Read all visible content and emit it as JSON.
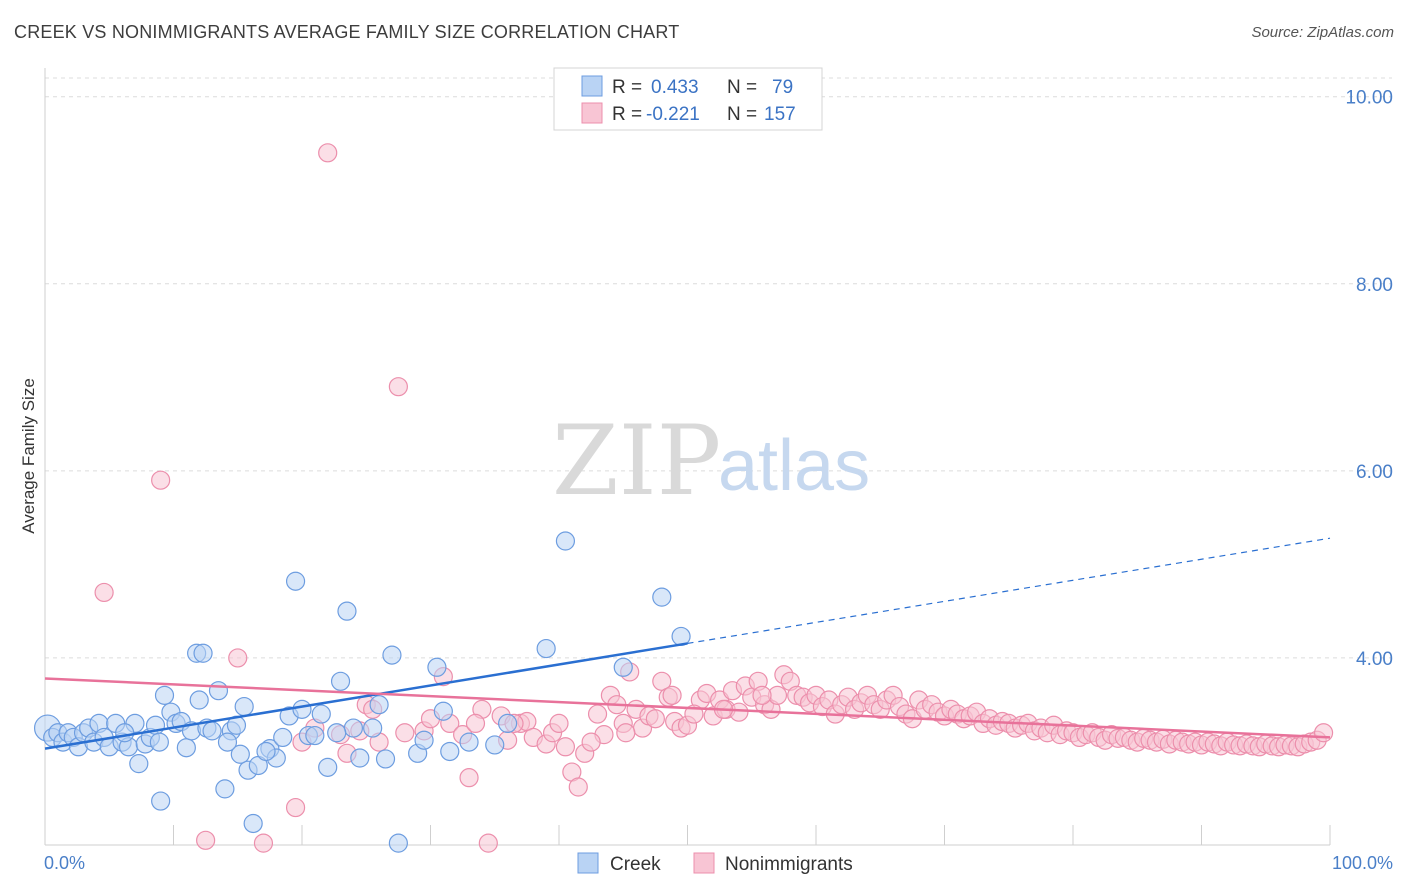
{
  "title": "CREEK VS NONIMMIGRANTS AVERAGE FAMILY SIZE CORRELATION CHART",
  "source": "Source: ZipAtlas.com",
  "watermark": {
    "zip": "ZIP",
    "atlas": "atlas"
  },
  "colors": {
    "creek_fill": "#b9d3f4",
    "creek_stroke": "#6d9de0",
    "creek_line": "#2a6fd1",
    "non_fill": "#f8c5d4",
    "non_stroke": "#ec8fac",
    "non_line": "#e8729a",
    "axis_text": "#4a7fc8",
    "grid": "#dcdcdc"
  },
  "legend": {
    "creek": {
      "r_label": "R =",
      "r_value": "0.433",
      "n_label": "N =",
      "n_value": "79"
    },
    "non": {
      "r_label": "R =",
      "r_value": "-0.221",
      "n_label": "N =",
      "n_value": "157"
    }
  },
  "chart_data": {
    "type": "scatter",
    "xlabel": "",
    "ylabel": "Average Family Size",
    "xlim": [
      0,
      100
    ],
    "ylim": [
      2.0,
      10.2
    ],
    "x_tick_labels": [
      "0.0%",
      "100.0%"
    ],
    "y_ticks": [
      4.0,
      6.0,
      8.0,
      10.0
    ],
    "y_tick_labels": [
      "4.00",
      "6.00",
      "8.00",
      "10.00"
    ],
    "grid": true,
    "legend_position": "top-center",
    "series": [
      {
        "name": "Creek",
        "trend": {
          "x0": 0,
          "y0": 3.03,
          "x1": 100,
          "y1": 5.28,
          "solid_until": 50
        },
        "points": [
          [
            0.2,
            3.25
          ],
          [
            0.6,
            3.15
          ],
          [
            1.0,
            3.2
          ],
          [
            1.4,
            3.1
          ],
          [
            1.8,
            3.2
          ],
          [
            2.2,
            3.15
          ],
          [
            2.6,
            3.05
          ],
          [
            3.0,
            3.2
          ],
          [
            3.4,
            3.25
          ],
          [
            3.8,
            3.1
          ],
          [
            4.2,
            3.3
          ],
          [
            4.6,
            3.15
          ],
          [
            5.0,
            3.05
          ],
          [
            5.5,
            3.3
          ],
          [
            6.0,
            3.1
          ],
          [
            6.5,
            3.05
          ],
          [
            7.0,
            3.3
          ],
          [
            7.3,
            2.87
          ],
          [
            7.8,
            3.08
          ],
          [
            8.2,
            3.15
          ],
          [
            8.6,
            3.28
          ],
          [
            9.0,
            2.47
          ],
          [
            9.3,
            3.6
          ],
          [
            9.8,
            3.42
          ],
          [
            10.2,
            3.3
          ],
          [
            10.6,
            3.32
          ],
          [
            11.0,
            3.04
          ],
          [
            11.4,
            3.22
          ],
          [
            11.8,
            4.05
          ],
          [
            12.0,
            3.55
          ],
          [
            12.3,
            4.05
          ],
          [
            12.6,
            3.25
          ],
          [
            13.0,
            3.22
          ],
          [
            13.5,
            3.65
          ],
          [
            14.0,
            2.6
          ],
          [
            14.5,
            3.22
          ],
          [
            14.9,
            3.28
          ],
          [
            15.2,
            2.97
          ],
          [
            15.5,
            3.48
          ],
          [
            15.8,
            2.8
          ],
          [
            16.2,
            2.23
          ],
          [
            16.6,
            2.85
          ],
          [
            17.5,
            3.03
          ],
          [
            18.0,
            2.93
          ],
          [
            18.5,
            3.15
          ],
          [
            19.0,
            3.38
          ],
          [
            19.5,
            4.82
          ],
          [
            20.0,
            3.45
          ],
          [
            20.5,
            3.17
          ],
          [
            21.0,
            3.17
          ],
          [
            21.5,
            3.4
          ],
          [
            22.0,
            2.83
          ],
          [
            23.0,
            3.75
          ],
          [
            23.5,
            4.5
          ],
          [
            24.0,
            3.25
          ],
          [
            24.5,
            2.93
          ],
          [
            25.5,
            3.25
          ],
          [
            26.5,
            2.92
          ],
          [
            27.0,
            4.03
          ],
          [
            27.5,
            2.02
          ],
          [
            29.0,
            2.98
          ],
          [
            29.5,
            3.12
          ],
          [
            30.5,
            3.9
          ],
          [
            31.0,
            3.43
          ],
          [
            31.5,
            3.0
          ],
          [
            35.0,
            3.07
          ],
          [
            39.0,
            4.1
          ],
          [
            40.5,
            5.25
          ],
          [
            48.0,
            4.65
          ],
          [
            49.5,
            4.23
          ],
          [
            45.0,
            3.9
          ],
          [
            36.0,
            3.3
          ],
          [
            33.0,
            3.1
          ],
          [
            26.0,
            3.5
          ],
          [
            22.7,
            3.2
          ],
          [
            17.2,
            3.0
          ],
          [
            14.2,
            3.1
          ],
          [
            8.9,
            3.1
          ],
          [
            6.2,
            3.2
          ]
        ]
      },
      {
        "name": "Nonimmigrants",
        "trend": {
          "x0": 0,
          "y0": 3.78,
          "x1": 100,
          "y1": 3.15,
          "solid_until": 100
        },
        "points": [
          [
            4.6,
            4.7
          ],
          [
            9.0,
            5.9
          ],
          [
            12.5,
            2.05
          ],
          [
            15.0,
            4.0
          ],
          [
            17.0,
            2.02
          ],
          [
            19.5,
            2.4
          ],
          [
            22.0,
            9.4
          ],
          [
            23.0,
            3.18
          ],
          [
            23.5,
            2.98
          ],
          [
            24.5,
            3.22
          ],
          [
            25.0,
            3.5
          ],
          [
            25.5,
            3.45
          ],
          [
            26.0,
            3.1
          ],
          [
            27.5,
            6.9
          ],
          [
            28.0,
            3.2
          ],
          [
            29.5,
            3.22
          ],
          [
            30.0,
            3.35
          ],
          [
            31.0,
            3.8
          ],
          [
            31.5,
            3.3
          ],
          [
            32.5,
            3.18
          ],
          [
            33.0,
            2.72
          ],
          [
            34.0,
            3.45
          ],
          [
            34.5,
            2.02
          ],
          [
            35.5,
            3.38
          ],
          [
            36.0,
            3.12
          ],
          [
            37.0,
            3.3
          ],
          [
            37.5,
            3.32
          ],
          [
            38.0,
            3.15
          ],
          [
            39.0,
            3.08
          ],
          [
            39.5,
            3.2
          ],
          [
            40.5,
            3.05
          ],
          [
            41.0,
            2.78
          ],
          [
            41.5,
            2.62
          ],
          [
            42.0,
            2.98
          ],
          [
            43.0,
            3.4
          ],
          [
            43.5,
            3.18
          ],
          [
            44.0,
            3.6
          ],
          [
            44.5,
            3.5
          ],
          [
            45.0,
            3.3
          ],
          [
            45.5,
            3.85
          ],
          [
            46.0,
            3.45
          ],
          [
            46.5,
            3.25
          ],
          [
            47.0,
            3.38
          ],
          [
            47.5,
            3.35
          ],
          [
            48.0,
            3.75
          ],
          [
            48.5,
            3.58
          ],
          [
            49.0,
            3.32
          ],
          [
            49.5,
            3.25
          ],
          [
            50.0,
            3.28
          ],
          [
            51.0,
            3.55
          ],
          [
            51.5,
            3.62
          ],
          [
            52.0,
            3.38
          ],
          [
            52.5,
            3.55
          ],
          [
            53.0,
            3.45
          ],
          [
            53.5,
            3.65
          ],
          [
            54.0,
            3.42
          ],
          [
            54.5,
            3.7
          ],
          [
            55.0,
            3.58
          ],
          [
            55.5,
            3.75
          ],
          [
            56.0,
            3.5
          ],
          [
            56.5,
            3.45
          ],
          [
            57.0,
            3.6
          ],
          [
            57.5,
            3.82
          ],
          [
            58.0,
            3.75
          ],
          [
            58.5,
            3.6
          ],
          [
            59.0,
            3.58
          ],
          [
            59.5,
            3.52
          ],
          [
            60.0,
            3.6
          ],
          [
            60.5,
            3.48
          ],
          [
            61.0,
            3.55
          ],
          [
            61.5,
            3.4
          ],
          [
            62.0,
            3.5
          ],
          [
            62.5,
            3.58
          ],
          [
            63.0,
            3.45
          ],
          [
            63.5,
            3.52
          ],
          [
            64.0,
            3.6
          ],
          [
            64.5,
            3.5
          ],
          [
            65.0,
            3.45
          ],
          [
            65.5,
            3.55
          ],
          [
            66.0,
            3.6
          ],
          [
            66.5,
            3.48
          ],
          [
            67.0,
            3.4
          ],
          [
            67.5,
            3.35
          ],
          [
            68.0,
            3.55
          ],
          [
            68.5,
            3.45
          ],
          [
            69.0,
            3.5
          ],
          [
            69.5,
            3.42
          ],
          [
            70.0,
            3.38
          ],
          [
            70.5,
            3.45
          ],
          [
            71.0,
            3.4
          ],
          [
            71.5,
            3.35
          ],
          [
            72.0,
            3.38
          ],
          [
            72.5,
            3.42
          ],
          [
            73.0,
            3.3
          ],
          [
            73.5,
            3.35
          ],
          [
            74.0,
            3.28
          ],
          [
            74.5,
            3.32
          ],
          [
            75.0,
            3.3
          ],
          [
            75.5,
            3.25
          ],
          [
            76.0,
            3.28
          ],
          [
            76.5,
            3.3
          ],
          [
            77.0,
            3.22
          ],
          [
            77.5,
            3.25
          ],
          [
            78.0,
            3.2
          ],
          [
            78.5,
            3.28
          ],
          [
            79.0,
            3.18
          ],
          [
            79.5,
            3.22
          ],
          [
            80.0,
            3.2
          ],
          [
            80.5,
            3.15
          ],
          [
            81.0,
            3.18
          ],
          [
            81.5,
            3.2
          ],
          [
            82.0,
            3.15
          ],
          [
            82.5,
            3.12
          ],
          [
            83.0,
            3.18
          ],
          [
            83.5,
            3.14
          ],
          [
            84.0,
            3.15
          ],
          [
            84.5,
            3.12
          ],
          [
            85.0,
            3.1
          ],
          [
            85.5,
            3.14
          ],
          [
            86.0,
            3.12
          ],
          [
            86.5,
            3.1
          ],
          [
            87.0,
            3.13
          ],
          [
            87.5,
            3.08
          ],
          [
            88.0,
            3.12
          ],
          [
            88.5,
            3.1
          ],
          [
            89.0,
            3.08
          ],
          [
            89.5,
            3.1
          ],
          [
            90.0,
            3.07
          ],
          [
            90.5,
            3.1
          ],
          [
            91.0,
            3.08
          ],
          [
            91.5,
            3.06
          ],
          [
            92.0,
            3.1
          ],
          [
            92.5,
            3.07
          ],
          [
            93.0,
            3.06
          ],
          [
            93.5,
            3.08
          ],
          [
            94.0,
            3.06
          ],
          [
            94.5,
            3.05
          ],
          [
            95.0,
            3.08
          ],
          [
            95.5,
            3.06
          ],
          [
            96.0,
            3.05
          ],
          [
            96.5,
            3.07
          ],
          [
            97.0,
            3.06
          ],
          [
            97.5,
            3.05
          ],
          [
            98.0,
            3.08
          ],
          [
            98.5,
            3.1
          ],
          [
            99.0,
            3.12
          ],
          [
            99.5,
            3.2
          ],
          [
            20.0,
            3.1
          ],
          [
            21.0,
            3.25
          ],
          [
            33.5,
            3.3
          ],
          [
            36.5,
            3.3
          ],
          [
            40.0,
            3.3
          ],
          [
            42.5,
            3.1
          ],
          [
            45.2,
            3.2
          ],
          [
            48.8,
            3.6
          ],
          [
            50.5,
            3.4
          ],
          [
            52.8,
            3.45
          ],
          [
            55.8,
            3.6
          ]
        ]
      }
    ]
  },
  "bottom_legend": {
    "creek": "Creek",
    "non": "Nonimmigrants"
  }
}
